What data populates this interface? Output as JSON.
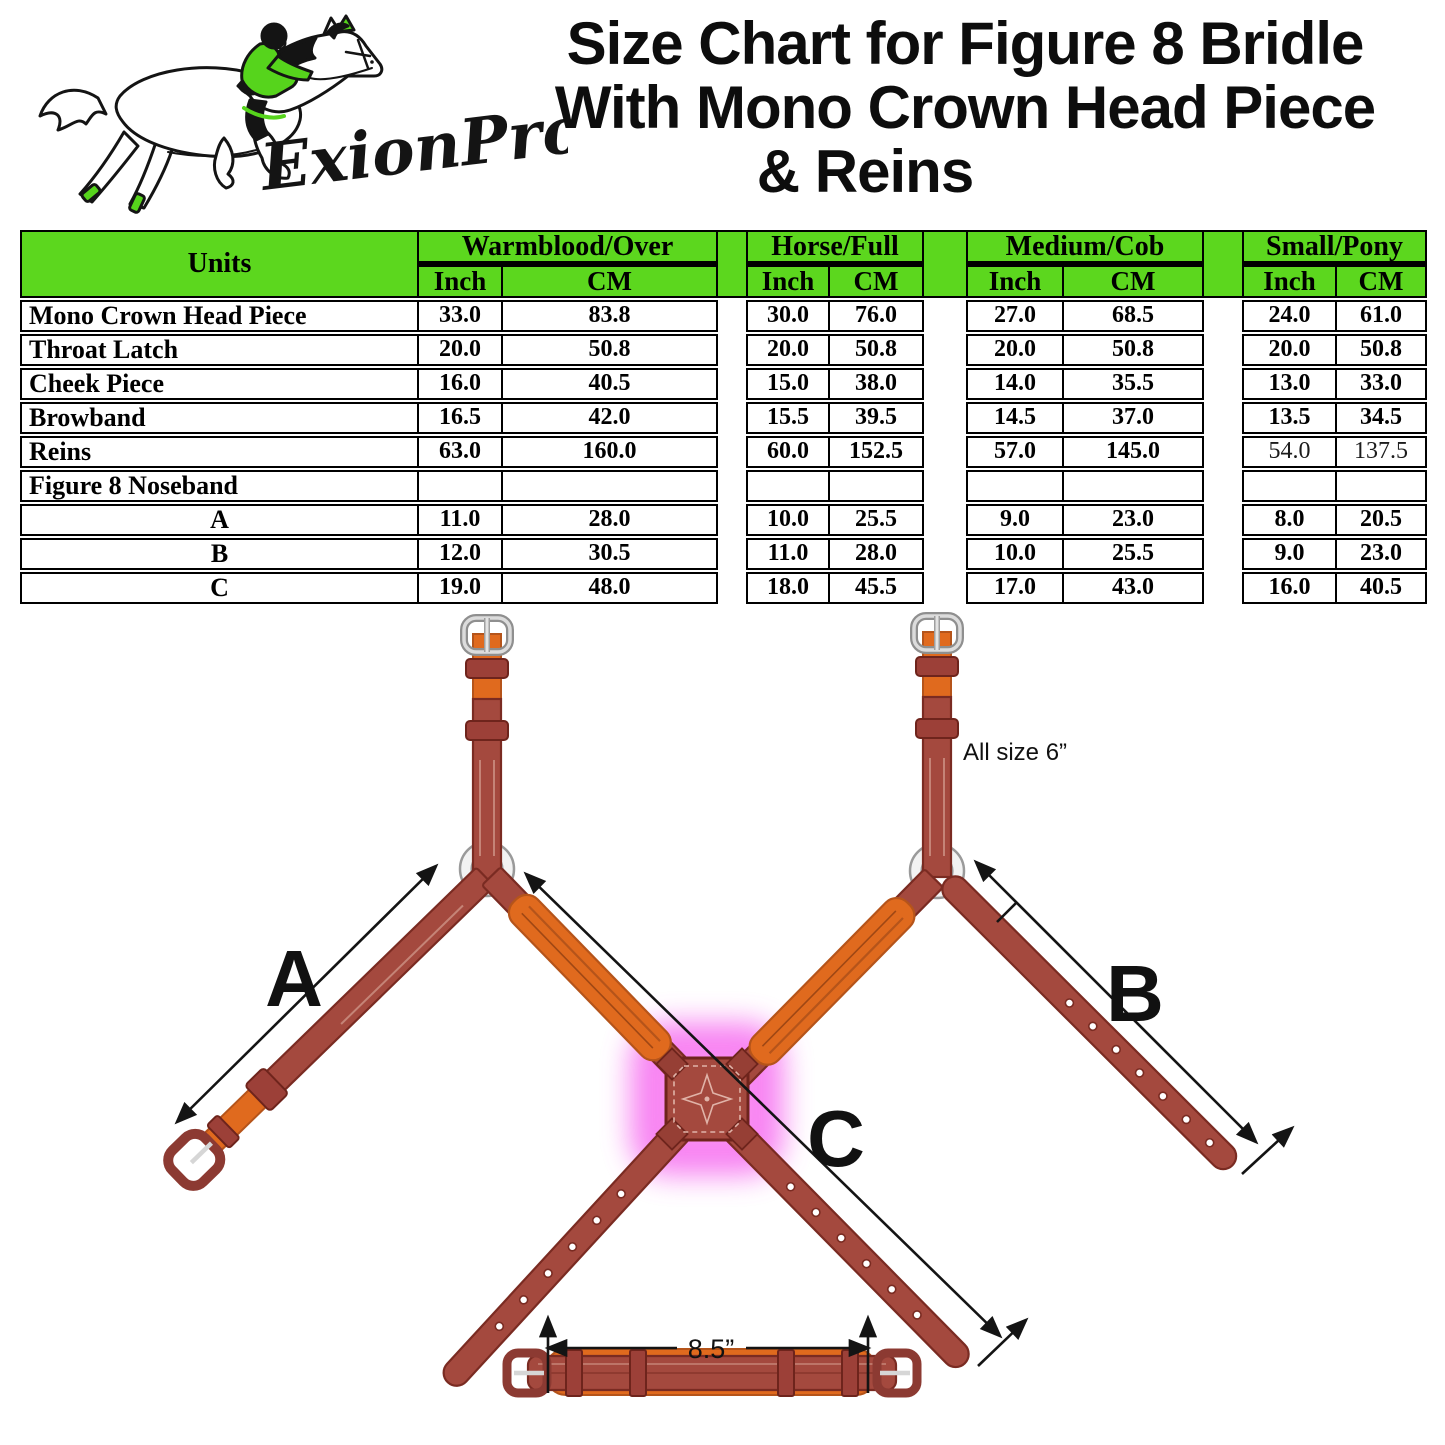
{
  "title": {
    "line1": "Size Chart for Figure 8 Bridle",
    "line2": "With Mono Crown Head Piece",
    "line3": "& Reins"
  },
  "logo": {
    "brand": "ExionPro"
  },
  "colors": {
    "header_green": "#5cd71e",
    "logo_green": "#56d41c",
    "leather": "#a4493e",
    "leather_dark": "#7a2b22",
    "leather_pad_orange": "#e06a1e",
    "pad_dark": "#b5541a",
    "keeper": "#9c4038",
    "glow_pink": "#f55bee",
    "metal_silver": "#c9c9c9",
    "arrow_black": "#141414"
  },
  "chart_data": {
    "type": "table",
    "title": "Size Chart for Figure 8 Bridle With Mono Crown Head Piece & Reins",
    "corner_header": "Units",
    "groups": [
      {
        "label": "Warmblood/Over",
        "sub": [
          "Inch",
          "CM"
        ]
      },
      {
        "label": "Horse/Full",
        "sub": [
          "Inch",
          "CM"
        ]
      },
      {
        "label": "Medium/Cob",
        "sub": [
          "Inch",
          "CM"
        ]
      },
      {
        "label": "Small/Pony",
        "sub": [
          "Inch",
          "CM"
        ]
      }
    ],
    "rows": [
      {
        "label": "Mono Crown Head Piece",
        "align": "left",
        "light": [],
        "values": [
          [
            "33.0",
            "83.8"
          ],
          [
            "30.0",
            "76.0"
          ],
          [
            "27.0",
            "68.5"
          ],
          [
            "24.0",
            "61.0"
          ]
        ]
      },
      {
        "label": "Throat Latch",
        "align": "left",
        "light": [],
        "values": [
          [
            "20.0",
            "50.8"
          ],
          [
            "20.0",
            "50.8"
          ],
          [
            "20.0",
            "50.8"
          ],
          [
            "20.0",
            "50.8"
          ]
        ]
      },
      {
        "label": "Cheek Piece",
        "align": "left",
        "light": [],
        "values": [
          [
            "16.0",
            "40.5"
          ],
          [
            "15.0",
            "38.0"
          ],
          [
            "14.0",
            "35.5"
          ],
          [
            "13.0",
            "33.0"
          ]
        ]
      },
      {
        "label": "Browband",
        "align": "left",
        "light": [],
        "values": [
          [
            "16.5",
            "42.0"
          ],
          [
            "15.5",
            "39.5"
          ],
          [
            "14.5",
            "37.0"
          ],
          [
            "13.5",
            "34.5"
          ]
        ]
      },
      {
        "label": "Reins",
        "align": "left",
        "light": [
          3
        ],
        "values": [
          [
            "63.0",
            "160.0"
          ],
          [
            "60.0",
            "152.5"
          ],
          [
            "57.0",
            "145.0"
          ],
          [
            "54.0",
            "137.5"
          ]
        ]
      },
      {
        "label": "Figure 8 Noseband",
        "align": "left",
        "light": [],
        "values": [
          [
            "",
            ""
          ],
          [
            "",
            ""
          ],
          [
            "",
            ""
          ],
          [
            "",
            ""
          ]
        ]
      },
      {
        "label": "A",
        "align": "center",
        "light": [],
        "values": [
          [
            "11.0",
            "28.0"
          ],
          [
            "10.0",
            "25.5"
          ],
          [
            "9.0",
            "23.0"
          ],
          [
            "8.0",
            "20.5"
          ]
        ]
      },
      {
        "label": "B",
        "align": "center",
        "light": [],
        "values": [
          [
            "12.0",
            "30.5"
          ],
          [
            "11.0",
            "28.0"
          ],
          [
            "10.0",
            "25.5"
          ],
          [
            "9.0",
            "23.0"
          ]
        ]
      },
      {
        "label": "C",
        "align": "center",
        "light": [],
        "values": [
          [
            "19.0",
            "48.0"
          ],
          [
            "18.0",
            "45.5"
          ],
          [
            "17.0",
            "43.0"
          ],
          [
            "16.0",
            "40.5"
          ]
        ]
      }
    ]
  },
  "diagram": {
    "labels": {
      "a": "A",
      "b": "B",
      "c": "C"
    },
    "annotations": {
      "all_size": "All size 6”",
      "bottom_width": "8.5”"
    }
  }
}
